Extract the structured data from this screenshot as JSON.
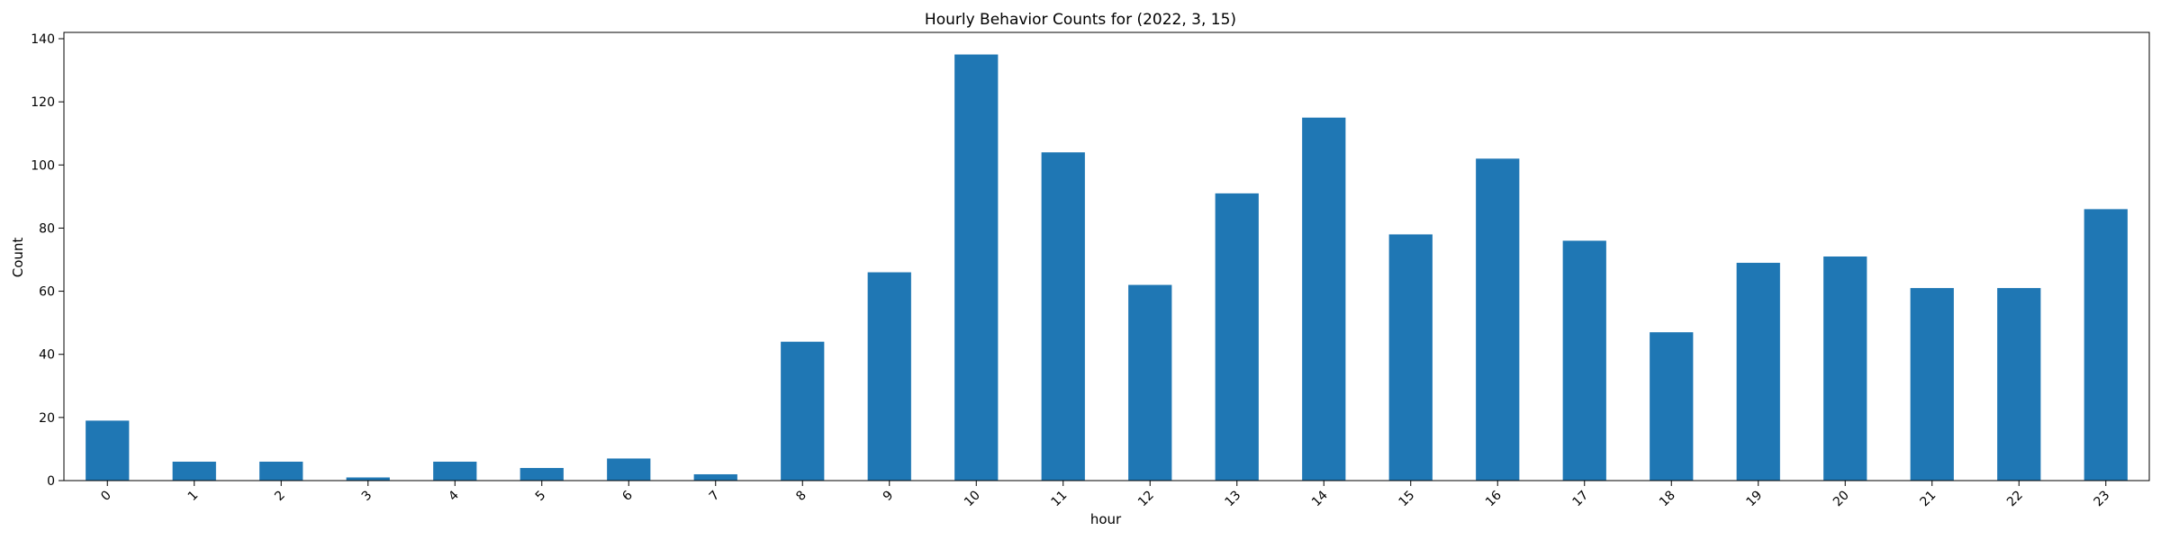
{
  "chart_data": {
    "type": "bar",
    "title": "Hourly Behavior Counts for (2022, 3, 15)",
    "xlabel": "hour",
    "ylabel": "Count",
    "categories": [
      "0",
      "1",
      "2",
      "3",
      "4",
      "5",
      "6",
      "7",
      "8",
      "9",
      "10",
      "11",
      "12",
      "13",
      "14",
      "15",
      "16",
      "17",
      "18",
      "19",
      "20",
      "21",
      "22",
      "23"
    ],
    "values": [
      19,
      6,
      6,
      1,
      6,
      4,
      7,
      2,
      44,
      66,
      135,
      104,
      62,
      91,
      115,
      78,
      102,
      76,
      47,
      69,
      71,
      61,
      61,
      86
    ],
    "ylim": [
      0,
      142
    ],
    "yticks": [
      0,
      20,
      40,
      60,
      80,
      100,
      120,
      140
    ],
    "bar_color": "#1f77b4",
    "grid": false,
    "legend": "none"
  }
}
